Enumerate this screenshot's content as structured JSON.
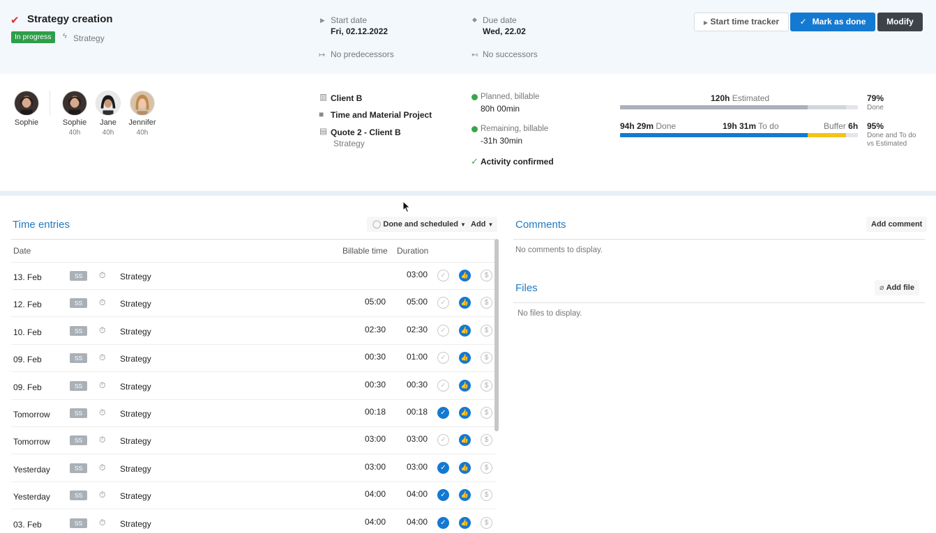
{
  "task": {
    "title": "Strategy creation",
    "status": "In progress",
    "category": "Strategy",
    "start_date_label": "Start date",
    "start_date": "Fri, 02.12.2022",
    "due_date_label": "Due date",
    "due_date": "Wed, 22.02",
    "predecessors": "No predecessors",
    "successors": "No successors"
  },
  "toolbar": {
    "tracker_label": "Start time tracker",
    "done_label": "Mark as done",
    "modify_label": "Modify"
  },
  "people": {
    "owner": {
      "name": "Sophie"
    },
    "assignees": [
      {
        "name": "Sophie",
        "hours": "40h"
      },
      {
        "name": "Jane",
        "hours": "40h"
      },
      {
        "name": "Jennifer",
        "hours": "40h"
      }
    ]
  },
  "project": {
    "client": "Client B",
    "type": "Time and Material Project",
    "quote": "Quote 2 - Client B",
    "quote_sub": "Strategy"
  },
  "finance": {
    "planned_label": "Planned, billable",
    "planned_value": "80h 00min",
    "remaining_label": "Remaining, billable",
    "remaining_value": "-31h 30min",
    "confirmed": "Activity confirmed"
  },
  "estimate": {
    "estimated_value": "120h",
    "estimated_label": "Estimated",
    "done_value": "94h 29m",
    "done_label": "Done",
    "todo_value": "19h 31m",
    "todo_label": "To do",
    "buffer_label": "Buffer",
    "buffer_value": "6h",
    "pct_done": "79%",
    "pct_done_label": "Done",
    "pct_total": "95%",
    "pct_total_label_1": "Done and To do",
    "pct_total_label_2": "vs Estimated",
    "bar_top_done_fraction": 0.79,
    "bar_bottom_done_fraction": 0.79,
    "bar_bottom_todo_fraction": 0.16,
    "colors": {
      "done": "#1479d1",
      "todo": "#f2c318",
      "estimated": "#a9b1ba",
      "estimated_rest": "#cfd6dd"
    }
  },
  "time_entries": {
    "title": "Time entries",
    "filter_label": "Done and scheduled",
    "add_label": "Add",
    "columns": {
      "date": "Date",
      "billable": "Billable time",
      "duration": "Duration"
    },
    "rows": [
      {
        "date": "13. Feb",
        "initials": "SS",
        "activity": "Strategy",
        "billable": "",
        "duration": "03:00",
        "confirmed": false
      },
      {
        "date": "12. Feb",
        "initials": "SS",
        "activity": "Strategy",
        "billable": "05:00",
        "duration": "05:00",
        "confirmed": false
      },
      {
        "date": "10. Feb",
        "initials": "SS",
        "activity": "Strategy",
        "billable": "02:30",
        "duration": "02:30",
        "confirmed": false
      },
      {
        "date": "09. Feb",
        "initials": "SS",
        "activity": "Strategy",
        "billable": "00:30",
        "duration": "01:00",
        "confirmed": false
      },
      {
        "date": "09. Feb",
        "initials": "SS",
        "activity": "Strategy",
        "billable": "00:30",
        "duration": "00:30",
        "confirmed": false
      },
      {
        "date": "Tomorrow",
        "initials": "SS",
        "activity": "Strategy",
        "billable": "00:18",
        "duration": "00:18",
        "confirmed": true
      },
      {
        "date": "Tomorrow",
        "initials": "SS",
        "activity": "Strategy",
        "billable": "03:00",
        "duration": "03:00",
        "confirmed": false
      },
      {
        "date": "Yesterday",
        "initials": "SS",
        "activity": "Strategy",
        "billable": "03:00",
        "duration": "03:00",
        "confirmed": true
      },
      {
        "date": "Yesterday",
        "initials": "SS",
        "activity": "Strategy",
        "billable": "04:00",
        "duration": "04:00",
        "confirmed": true
      },
      {
        "date": "03. Feb",
        "initials": "SS",
        "activity": "Strategy",
        "billable": "04:00",
        "duration": "04:00",
        "confirmed": true
      }
    ]
  },
  "comments": {
    "title": "Comments",
    "add_label": "Add comment",
    "empty": "No comments to display."
  },
  "files": {
    "title": "Files",
    "add_label": "Add file",
    "empty": "No files to display."
  }
}
